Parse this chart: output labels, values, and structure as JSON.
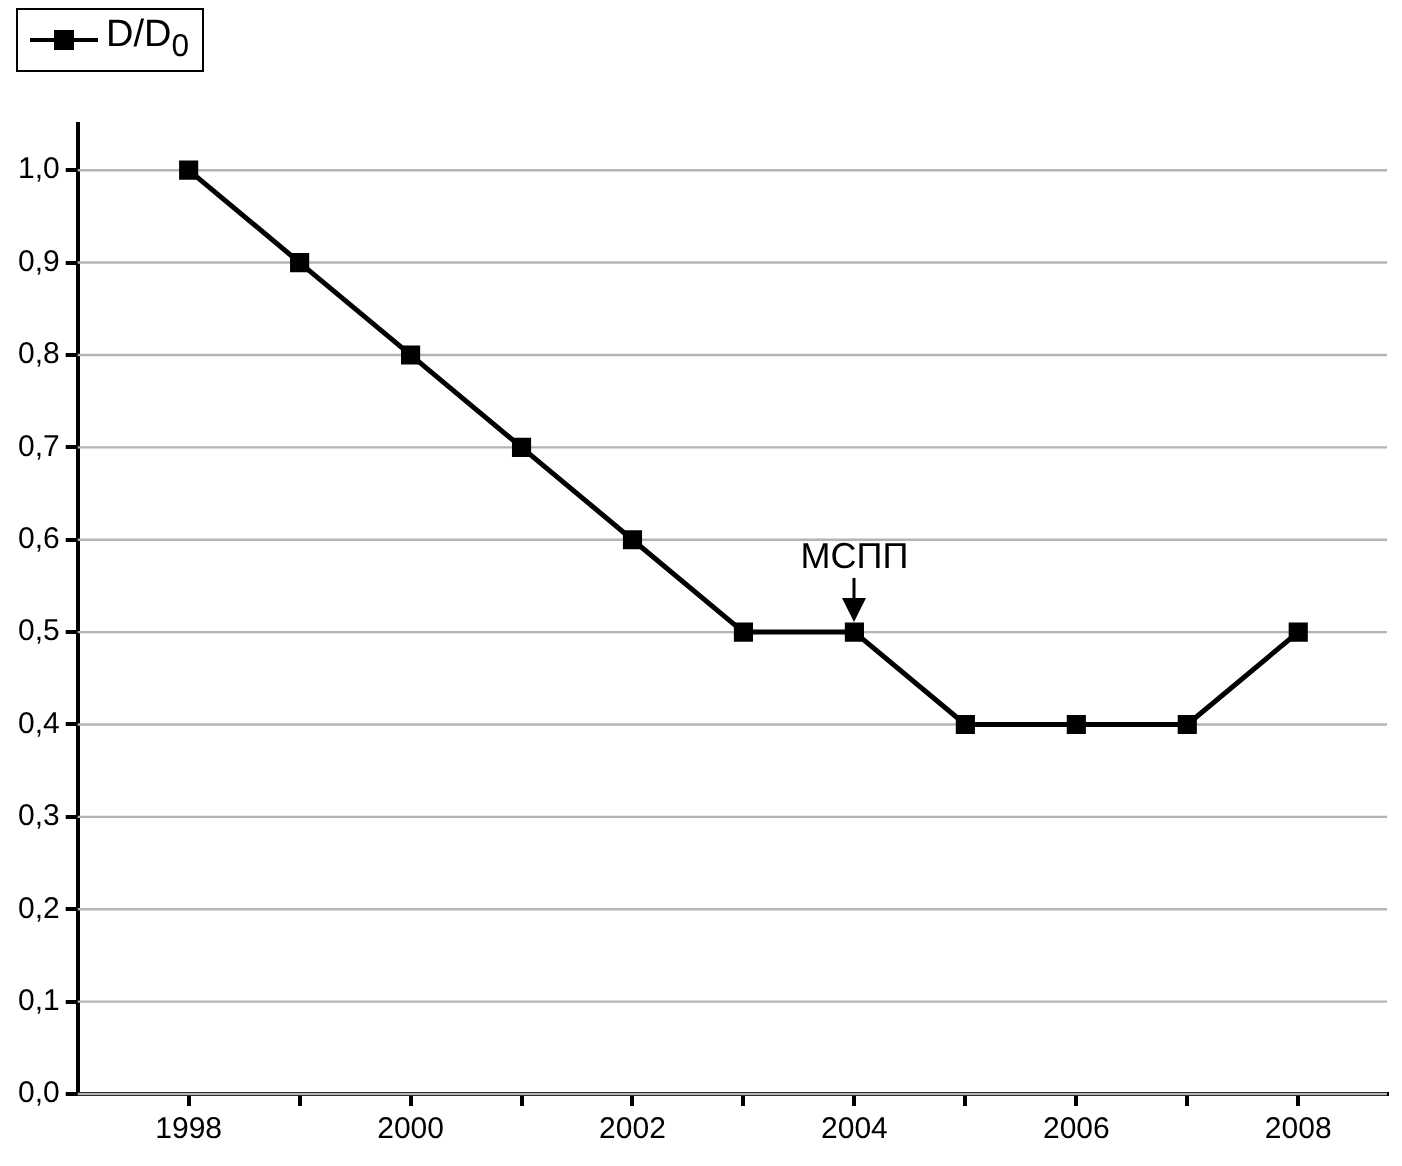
{
  "chart_data": {
    "type": "line",
    "x": [
      1998,
      1999,
      2000,
      2001,
      2002,
      2003,
      2004,
      2005,
      2006,
      2007,
      2008
    ],
    "series": [
      {
        "name": "D/D$_{0}$",
        "color": "#000000",
        "values": [
          1.0,
          0.9,
          0.8,
          0.7,
          0.6,
          0.5,
          0.5,
          0.4,
          0.4,
          0.4,
          0.5
        ]
      }
    ],
    "xlim": [
      1997,
      2008.8
    ],
    "xticks": [
      1998,
      {
        "value": 1999,
        "label": null
      },
      2000,
      {
        "value": 2001,
        "label": null
      },
      2002,
      {
        "value": 2003,
        "label": null
      },
      2004,
      {
        "value": 2005,
        "label": null
      },
      2006,
      {
        "value": 2007,
        "label": null
      },
      2008
    ],
    "ylim": [
      0,
      1.05
    ],
    "yticks": [
      {
        "value": 0,
        "label": "0,0"
      },
      {
        "value": 0.1,
        "label": "0,1"
      },
      {
        "value": 0.2,
        "label": "0,2"
      },
      {
        "value": 0.3,
        "label": "0,3"
      },
      {
        "value": 0.4,
        "label": "0,4"
      },
      {
        "value": 0.5,
        "label": "0,5"
      },
      {
        "value": 0.6,
        "label": "0,6"
      },
      {
        "value": 0.7,
        "label": "0,7"
      },
      {
        "value": 0.8,
        "label": "0,8"
      },
      {
        "value": 0.9,
        "label": "0,9"
      },
      {
        "value": 1.0,
        "label": "1,0"
      }
    ],
    "grid": "y",
    "legend": "top left",
    "marker": "square",
    "line_style": "solid",
    "annotations": [
      {
        "text": "МСПП",
        "x": 2004,
        "y": 0.5
      }
    ]
  }
}
